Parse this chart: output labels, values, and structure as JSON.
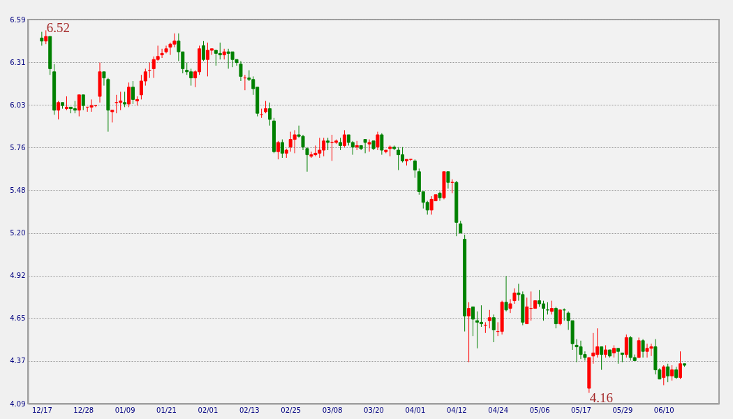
{
  "chart_data": {
    "type": "candlestick",
    "categories": [
      "12/17",
      null,
      null,
      null,
      null,
      null,
      null,
      null,
      null,
      null,
      "12/28",
      null,
      null,
      null,
      null,
      null,
      null,
      null,
      null,
      null,
      "01/09",
      null,
      null,
      null,
      null,
      null,
      null,
      null,
      null,
      null,
      "01/21",
      null,
      null,
      null,
      null,
      null,
      null,
      null,
      null,
      null,
      "02/01",
      null,
      null,
      null,
      null,
      null,
      null,
      null,
      null,
      null,
      "02/13",
      null,
      null,
      null,
      null,
      null,
      null,
      null,
      null,
      null,
      "02/25",
      null,
      null,
      null,
      null,
      null,
      null,
      null,
      null,
      null,
      "03/08",
      null,
      null,
      null,
      null,
      null,
      null,
      null,
      null,
      null,
      "03/20",
      null,
      null,
      null,
      null,
      null,
      null,
      null,
      null,
      null,
      "04/01",
      null,
      null,
      null,
      null,
      null,
      null,
      null,
      null,
      null,
      "04/12",
      null,
      null,
      null,
      null,
      null,
      null,
      null,
      null,
      null,
      "04/24",
      null,
      null,
      null,
      null,
      null,
      null,
      null,
      null,
      null,
      "05/06",
      null,
      null,
      null,
      null,
      null,
      null,
      null,
      null,
      null,
      "05/17",
      null,
      null,
      null,
      null,
      null,
      null,
      null,
      null,
      null,
      "05/29",
      null,
      null,
      null,
      null,
      null,
      null,
      null,
      null,
      null,
      "06/10",
      null,
      null,
      null,
      null,
      null
    ],
    "ohlc": [
      [
        6.47,
        6.51,
        6.42,
        6.45
      ],
      [
        6.45,
        6.52,
        6.43,
        6.48
      ],
      [
        6.48,
        6.48,
        6.23,
        6.27
      ],
      [
        6.25,
        6.3,
        5.97,
        6.0
      ],
      [
        6.0,
        6.06,
        5.94,
        6.05
      ],
      [
        6.05,
        6.05,
        6.01,
        6.03
      ],
      [
        6.01,
        6.09,
        6.0,
        6.02
      ],
      [
        6.02,
        6.02,
        5.98,
        6.01
      ],
      [
        6.01,
        6.06,
        5.98,
        6.0
      ],
      [
        6.0,
        6.1,
        5.96,
        6.1
      ],
      [
        6.1,
        6.1,
        6.0,
        6.03
      ],
      [
        6.02,
        6.02,
        5.99,
        6.02
      ],
      [
        6.02,
        6.07,
        5.99,
        6.03
      ],
      [
        6.03,
        6.03,
        6.02,
        6.03
      ],
      [
        6.09,
        6.31,
        6.05,
        6.25
      ],
      [
        6.25,
        6.25,
        6.16,
        6.21
      ],
      [
        6.2,
        6.21,
        5.86,
        6.0
      ],
      [
        5.99,
        6.0,
        5.92,
        6.0
      ],
      [
        6.05,
        6.1,
        5.98,
        6.05
      ],
      [
        6.05,
        6.12,
        6.0,
        6.06
      ],
      [
        6.05,
        6.12,
        6.02,
        6.04
      ],
      [
        6.04,
        6.18,
        6.02,
        6.15
      ],
      [
        6.15,
        6.19,
        6.04,
        6.07
      ],
      [
        6.06,
        6.09,
        6.03,
        6.07
      ],
      [
        6.1,
        6.23,
        6.07,
        6.19
      ],
      [
        6.19,
        6.27,
        6.16,
        6.25
      ],
      [
        6.26,
        6.31,
        6.21,
        6.26
      ],
      [
        6.27,
        6.35,
        6.21,
        6.33
      ],
      [
        6.33,
        6.42,
        6.32,
        6.35
      ],
      [
        6.36,
        6.4,
        6.34,
        6.37
      ],
      [
        6.38,
        6.42,
        6.37,
        6.4
      ],
      [
        6.41,
        6.44,
        6.36,
        6.43
      ],
      [
        6.43,
        6.5,
        6.41,
        6.45
      ],
      [
        6.45,
        6.5,
        6.32,
        6.38
      ],
      [
        6.38,
        6.38,
        6.24,
        6.27
      ],
      [
        6.26,
        6.31,
        6.23,
        6.25
      ],
      [
        6.25,
        6.27,
        6.16,
        6.21
      ],
      [
        6.21,
        6.26,
        6.15,
        6.25
      ],
      [
        6.25,
        6.42,
        6.23,
        6.4
      ],
      [
        6.42,
        6.45,
        6.32,
        6.33
      ],
      [
        6.33,
        6.44,
        6.22,
        6.39
      ],
      [
        6.39,
        6.4,
        6.36,
        6.4
      ],
      [
        6.39,
        6.39,
        6.29,
        6.37
      ],
      [
        6.37,
        6.44,
        6.33,
        6.36
      ],
      [
        6.36,
        6.4,
        6.33,
        6.38
      ],
      [
        6.38,
        6.4,
        6.27,
        6.37
      ],
      [
        6.38,
        6.38,
        6.28,
        6.33
      ],
      [
        6.33,
        6.33,
        6.29,
        6.31
      ],
      [
        6.3,
        6.32,
        6.19,
        6.22
      ],
      [
        6.21,
        6.23,
        6.13,
        6.21
      ],
      [
        6.21,
        6.26,
        6.19,
        6.2
      ],
      [
        6.2,
        6.22,
        6.1,
        6.14
      ],
      [
        6.15,
        6.15,
        5.96,
        5.98
      ],
      [
        5.97,
        6.01,
        5.95,
        5.97
      ],
      [
        5.99,
        6.06,
        5.98,
        6.01
      ],
      [
        6.01,
        6.05,
        5.9,
        5.94
      ],
      [
        5.93,
        5.95,
        5.72,
        5.73
      ],
      [
        5.73,
        5.8,
        5.68,
        5.79
      ],
      [
        5.79,
        5.81,
        5.69,
        5.72
      ],
      [
        5.72,
        5.75,
        5.69,
        5.74
      ],
      [
        5.76,
        5.86,
        5.73,
        5.81
      ],
      [
        5.81,
        5.87,
        5.72,
        5.84
      ],
      [
        5.84,
        5.9,
        5.82,
        5.83
      ],
      [
        5.83,
        5.84,
        5.74,
        5.76
      ],
      [
        5.75,
        5.76,
        5.6,
        5.71
      ],
      [
        5.7,
        5.73,
        5.69,
        5.71
      ],
      [
        5.71,
        5.77,
        5.7,
        5.72
      ],
      [
        5.72,
        5.82,
        5.69,
        5.74
      ],
      [
        5.74,
        5.82,
        5.7,
        5.8
      ],
      [
        5.8,
        5.82,
        5.74,
        5.79
      ],
      [
        5.79,
        5.84,
        5.67,
        5.79
      ],
      [
        5.79,
        5.81,
        5.78,
        5.8
      ],
      [
        5.79,
        5.82,
        5.74,
        5.77
      ],
      [
        5.77,
        5.87,
        5.76,
        5.84
      ],
      [
        5.84,
        5.84,
        5.77,
        5.79
      ],
      [
        5.79,
        5.8,
        5.71,
        5.76
      ],
      [
        5.76,
        5.8,
        5.74,
        5.77
      ],
      [
        5.77,
        5.77,
        5.74,
        5.75
      ],
      [
        5.81,
        5.81,
        5.72,
        5.79
      ],
      [
        5.78,
        5.81,
        5.73,
        5.79
      ],
      [
        5.8,
        5.8,
        5.74,
        5.75
      ],
      [
        5.76,
        5.86,
        5.74,
        5.84
      ],
      [
        5.84,
        5.85,
        5.71,
        5.74
      ],
      [
        5.73,
        5.74,
        5.72,
        5.74
      ],
      [
        5.75,
        5.77,
        5.7,
        5.76
      ],
      [
        5.76,
        5.77,
        5.74,
        5.75
      ],
      [
        5.74,
        5.76,
        5.61,
        5.71
      ],
      [
        5.71,
        5.76,
        5.66,
        5.67
      ],
      [
        5.67,
        5.68,
        5.64,
        5.68
      ],
      [
        5.68,
        5.68,
        5.67,
        5.68
      ],
      [
        5.67,
        5.68,
        5.56,
        5.61
      ],
      [
        5.6,
        5.62,
        5.45,
        5.47
      ],
      [
        5.47,
        5.47,
        5.36,
        5.4
      ],
      [
        5.4,
        5.41,
        5.32,
        5.35
      ],
      [
        5.35,
        5.44,
        5.32,
        5.42
      ],
      [
        5.41,
        5.45,
        5.41,
        5.45
      ],
      [
        5.46,
        5.47,
        5.41,
        5.43
      ],
      [
        5.43,
        5.6,
        5.42,
        5.6
      ],
      [
        5.6,
        5.6,
        5.49,
        5.53
      ],
      [
        5.53,
        5.55,
        5.46,
        5.53
      ],
      [
        5.53,
        5.54,
        5.18,
        5.27
      ],
      [
        5.26,
        5.28,
        5.2,
        5.2
      ],
      [
        5.16,
        5.19,
        4.56,
        4.66
      ],
      [
        4.66,
        4.75,
        4.36,
        4.71
      ],
      [
        4.72,
        4.72,
        4.53,
        4.64
      ],
      [
        4.63,
        4.69,
        4.45,
        4.62
      ],
      [
        4.62,
        4.73,
        4.59,
        4.61
      ],
      [
        4.6,
        4.62,
        4.55,
        4.6
      ],
      [
        4.63,
        4.7,
        4.58,
        4.65
      ],
      [
        4.65,
        4.67,
        4.49,
        4.57
      ],
      [
        4.56,
        4.62,
        4.53,
        4.56
      ],
      [
        4.56,
        4.76,
        4.54,
        4.75
      ],
      [
        4.75,
        4.92,
        4.69,
        4.7
      ],
      [
        4.71,
        4.77,
        4.68,
        4.74
      ],
      [
        4.76,
        4.84,
        4.74,
        4.81
      ],
      [
        4.81,
        4.87,
        4.76,
        4.8
      ],
      [
        4.8,
        4.82,
        4.6,
        4.62
      ],
      [
        4.61,
        4.78,
        4.61,
        4.72
      ],
      [
        4.71,
        4.82,
        4.63,
        4.71
      ],
      [
        4.71,
        4.76,
        4.71,
        4.76
      ],
      [
        4.76,
        4.83,
        4.72,
        4.74
      ],
      [
        4.74,
        4.76,
        4.63,
        4.71
      ],
      [
        4.7,
        4.75,
        4.67,
        4.7
      ],
      [
        4.69,
        4.76,
        4.67,
        4.71
      ],
      [
        4.71,
        4.72,
        4.58,
        4.61
      ],
      [
        4.61,
        4.7,
        4.6,
        4.7
      ],
      [
        4.7,
        4.71,
        4.63,
        4.7
      ],
      [
        4.68,
        4.69,
        4.57,
        4.63
      ],
      [
        4.63,
        4.63,
        4.44,
        4.48
      ],
      [
        4.47,
        4.51,
        4.36,
        4.46
      ],
      [
        4.46,
        4.5,
        4.38,
        4.41
      ],
      [
        4.41,
        4.43,
        4.37,
        4.39
      ],
      [
        4.19,
        4.39,
        4.16,
        4.39
      ],
      [
        4.4,
        4.55,
        4.35,
        4.42
      ],
      [
        4.41,
        4.58,
        4.39,
        4.46
      ],
      [
        4.46,
        4.46,
        4.31,
        4.41
      ],
      [
        4.41,
        4.47,
        4.39,
        4.44
      ],
      [
        4.44,
        4.44,
        4.39,
        4.4
      ],
      [
        4.42,
        4.47,
        4.39,
        4.45
      ],
      [
        4.45,
        4.45,
        4.35,
        4.43
      ],
      [
        4.42,
        4.42,
        4.36,
        4.41
      ],
      [
        4.41,
        4.54,
        4.39,
        4.52
      ],
      [
        4.52,
        4.53,
        4.37,
        4.39
      ],
      [
        4.39,
        4.41,
        4.37,
        4.37
      ],
      [
        4.39,
        4.52,
        4.39,
        4.5
      ],
      [
        4.5,
        4.51,
        4.39,
        4.43
      ],
      [
        4.43,
        4.48,
        4.39,
        4.45
      ],
      [
        4.45,
        4.48,
        4.4,
        4.46
      ],
      [
        4.46,
        4.51,
        4.28,
        4.31
      ],
      [
        4.31,
        4.32,
        4.25,
        4.25
      ],
      [
        4.26,
        4.34,
        4.21,
        4.33
      ],
      [
        4.33,
        4.35,
        4.23,
        4.27
      ],
      [
        4.27,
        4.34,
        4.24,
        4.31
      ],
      [
        4.31,
        4.33,
        4.25,
        4.26
      ],
      [
        4.26,
        4.43,
        4.25,
        4.35
      ],
      [
        4.35,
        4.35,
        4.33,
        4.34
      ]
    ],
    "colors": [
      "#008000",
      "#ff0000",
      "#008000",
      "#008000",
      "#ff0000",
      "#008000",
      "#ff0000",
      "#008000",
      "#008000",
      "#ff0000",
      "#008000",
      "#ff0000",
      "#ff0000",
      "#ff0000",
      "#ff0000",
      "#008000",
      "#008000",
      "#ff0000",
      "#ff0000",
      "#ff0000",
      "#008000",
      "#ff0000",
      "#008000",
      "#ff0000",
      "#ff0000",
      "#ff0000",
      "#ff0000",
      "#ff0000",
      "#ff0000",
      "#ff0000",
      "#ff0000",
      "#ff0000",
      "#ff0000",
      "#008000",
      "#008000",
      "#008000",
      "#008000",
      "#ff0000",
      "#ff0000",
      "#008000",
      "#ff0000",
      "#ff0000",
      "#008000",
      "#008000",
      "#ff0000",
      "#008000",
      "#008000",
      "#008000",
      "#008000",
      "#ff0000",
      "#008000",
      "#008000",
      "#008000",
      "#ff0000",
      "#ff0000",
      "#008000",
      "#008000",
      "#ff0000",
      "#008000",
      "#ff0000",
      "#ff0000",
      "#ff0000",
      "#008000",
      "#008000",
      "#008000",
      "#ff0000",
      "#ff0000",
      "#ff0000",
      "#ff0000",
      "#008000",
      "#ff0000",
      "#ff0000",
      "#008000",
      "#ff0000",
      "#008000",
      "#008000",
      "#ff0000",
      "#008000",
      "#008000",
      "#ff0000",
      "#008000",
      "#ff0000",
      "#008000",
      "#ff0000",
      "#ff0000",
      "#008000",
      "#008000",
      "#008000",
      "#ff0000",
      "#ff0000",
      "#008000",
      "#008000",
      "#008000",
      "#008000",
      "#ff0000",
      "#ff0000",
      "#008000",
      "#ff0000",
      "#008000",
      "#ff0000",
      "#008000",
      "#008000",
      "#008000",
      "#ff0000",
      "#008000",
      "#008000",
      "#008000",
      "#ff0000",
      "#ff0000",
      "#008000",
      "#ff0000",
      "#ff0000",
      "#008000",
      "#ff0000",
      "#ff0000",
      "#008000",
      "#008000",
      "#ff0000",
      "#ff0000",
      "#ff0000",
      "#008000",
      "#008000",
      "#008000",
      "#ff0000",
      "#008000",
      "#ff0000",
      "#008000",
      "#008000",
      "#008000",
      "#008000",
      "#008000",
      "#008000",
      "#ff0000",
      "#ff0000",
      "#ff0000",
      "#008000",
      "#ff0000",
      "#008000",
      "#ff0000",
      "#008000",
      "#008000",
      "#ff0000",
      "#008000",
      "#008000",
      "#ff0000",
      "#008000",
      "#ff0000",
      "#ff0000",
      "#008000",
      "#008000",
      "#ff0000",
      "#008000",
      "#ff0000",
      "#008000",
      "#ff0000",
      "#008000"
    ],
    "ylim": [
      4.09,
      6.59
    ],
    "yticks": [
      4.09,
      {
        "value": 4.3678,
        "label": "4.37"
      },
      {
        "value": 4.6456,
        "label": "4.65"
      },
      {
        "value": 4.9233,
        "label": "4.92"
      },
      {
        "value": 5.2011,
        "label": "5.20"
      },
      {
        "value": 5.4789,
        "label": "5.48"
      },
      {
        "value": 5.7567,
        "label": "5.76"
      },
      {
        "value": 6.0344,
        "label": "6.03"
      },
      {
        "value": 6.3122,
        "label": "6.31"
      },
      6.59
    ],
    "grid": "y",
    "annotations": [
      "6.52",
      "4.16"
    ]
  }
}
